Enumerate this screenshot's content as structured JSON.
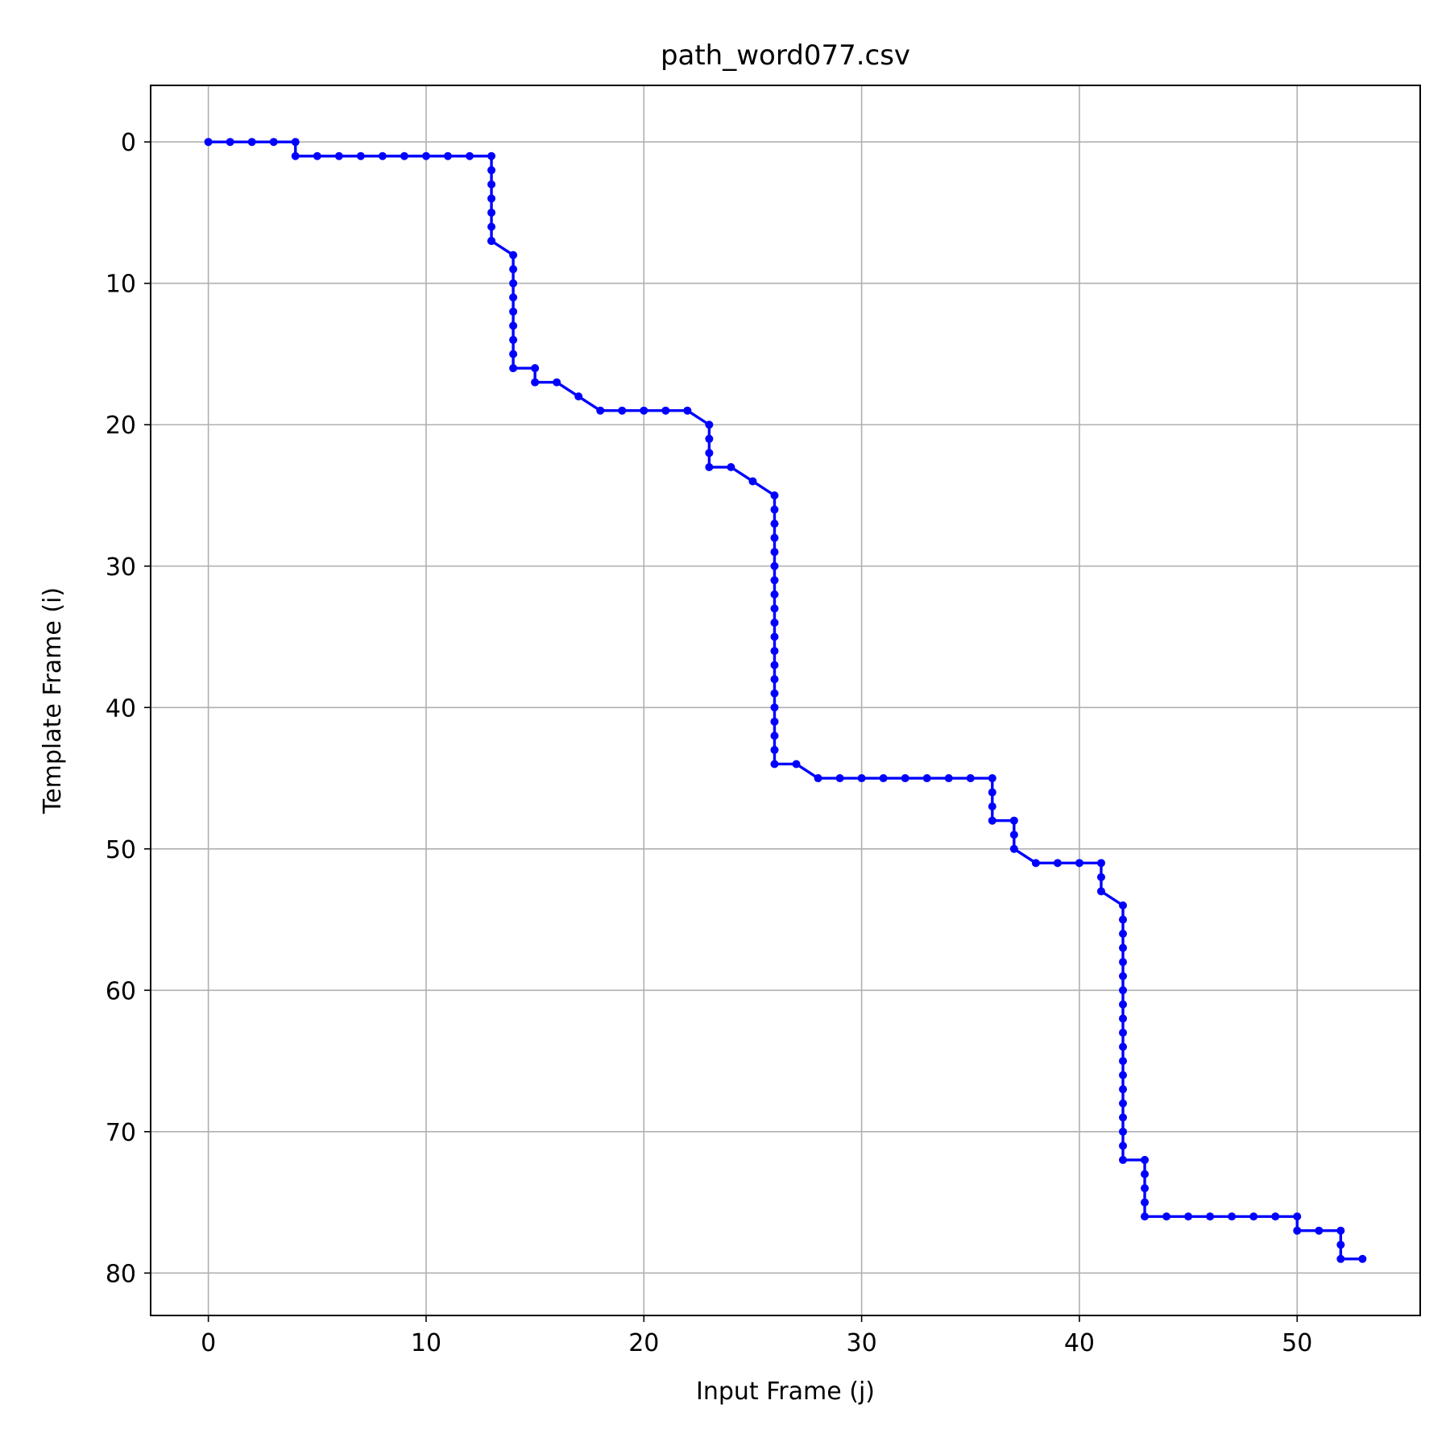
{
  "chart_data": {
    "type": "line",
    "title": "path_word077.csv",
    "xlabel": "Input Frame (j)",
    "ylabel": "Template Frame (i)",
    "xlim": [
      -2.65,
      55.65
    ],
    "ylim": [
      83.0,
      -4.0
    ],
    "y_inverted": true,
    "xticks": [
      0,
      10,
      20,
      30,
      40,
      50
    ],
    "yticks": [
      0,
      10,
      20,
      30,
      40,
      50,
      60,
      70,
      80
    ],
    "grid": true,
    "series": [
      {
        "color": "#0000ff",
        "marker": "dot",
        "x": [
          0,
          1,
          2,
          3,
          4,
          4,
          5,
          6,
          7,
          8,
          9,
          10,
          11,
          12,
          13,
          13,
          13,
          13,
          13,
          13,
          13,
          13,
          14,
          14,
          14,
          14,
          14,
          14,
          14,
          14,
          14,
          15,
          15,
          16,
          17,
          18,
          19,
          20,
          21,
          22,
          23,
          23,
          23,
          23,
          24,
          25,
          26,
          26,
          26,
          26,
          26,
          26,
          26,
          26,
          26,
          26,
          26,
          26,
          26,
          26,
          26,
          26,
          26,
          26,
          26,
          26,
          27,
          28,
          29,
          30,
          31,
          32,
          33,
          34,
          35,
          36,
          36,
          36,
          36,
          37,
          37,
          37,
          38,
          39,
          40,
          41,
          41,
          41,
          42,
          42,
          42,
          42,
          42,
          42,
          42,
          42,
          42,
          42,
          42,
          42,
          42,
          42,
          42,
          42,
          42,
          42,
          42,
          43,
          43,
          43,
          43,
          43,
          44,
          45,
          46,
          47,
          48,
          49,
          50,
          50,
          51,
          52,
          52,
          52,
          53
        ],
        "y": [
          0,
          0,
          0,
          0,
          0,
          1,
          1,
          1,
          1,
          1,
          1,
          1,
          1,
          1,
          1,
          2,
          3,
          4,
          5,
          6,
          7,
          7,
          8,
          9,
          10,
          11,
          12,
          13,
          14,
          15,
          16,
          16,
          17,
          17,
          18,
          19,
          19,
          19,
          19,
          19,
          20,
          21,
          22,
          23,
          23,
          24,
          25,
          26,
          27,
          28,
          29,
          30,
          31,
          32,
          33,
          34,
          35,
          36,
          37,
          38,
          39,
          40,
          41,
          42,
          43,
          44,
          44,
          45,
          45,
          45,
          45,
          45,
          45,
          45,
          45,
          45,
          46,
          47,
          48,
          48,
          49,
          50,
          51,
          51,
          51,
          51,
          52,
          53,
          54,
          55,
          56,
          57,
          58,
          59,
          60,
          61,
          62,
          63,
          64,
          65,
          66,
          67,
          68,
          69,
          70,
          71,
          72,
          72,
          73,
          74,
          75,
          76,
          76,
          76,
          76,
          76,
          76,
          76,
          76,
          77,
          77,
          77,
          78,
          79,
          79
        ]
      }
    ]
  }
}
